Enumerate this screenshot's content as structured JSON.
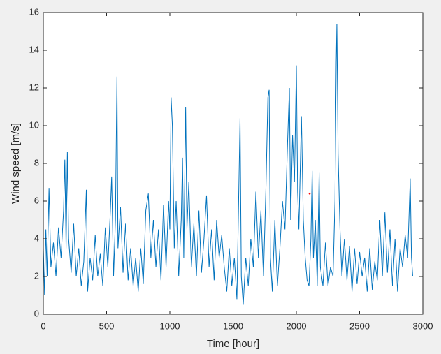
{
  "chart_data": {
    "type": "line",
    "xlabel": "Time [hour]",
    "ylabel": "Wind speed [m/s]",
    "xlim": [
      0,
      3000
    ],
    "xticks": [
      0,
      500,
      1000,
      1500,
      2000,
      2500,
      3000
    ],
    "ylim": [
      0,
      16
    ],
    "yticks": [
      0,
      2,
      4,
      6,
      8,
      10,
      12,
      14,
      16
    ],
    "series": [
      {
        "color": "#0072bd",
        "x": [
          0,
          10,
          20,
          30,
          45,
          60,
          80,
          100,
          120,
          140,
          160,
          170,
          180,
          190,
          200,
          220,
          240,
          260,
          280,
          300,
          320,
          340,
          350,
          370,
          390,
          410,
          430,
          450,
          470,
          490,
          510,
          530,
          540,
          555,
          570,
          582,
          590,
          610,
          630,
          650,
          670,
          690,
          710,
          730,
          750,
          770,
          790,
          810,
          830,
          850,
          870,
          890,
          910,
          930,
          950,
          970,
          990,
          1000,
          1010,
          1020,
          1035,
          1050,
          1070,
          1090,
          1100,
          1110,
          1125,
          1135,
          1150,
          1170,
          1190,
          1210,
          1230,
          1250,
          1270,
          1290,
          1310,
          1330,
          1350,
          1370,
          1390,
          1410,
          1430,
          1450,
          1470,
          1490,
          1510,
          1530,
          1545,
          1555,
          1565,
          1580,
          1600,
          1620,
          1640,
          1660,
          1680,
          1700,
          1720,
          1740,
          1760,
          1775,
          1785,
          1795,
          1810,
          1830,
          1850,
          1870,
          1890,
          1910,
          1930,
          1945,
          1955,
          1970,
          1985,
          2000,
          2010,
          2020,
          2040,
          2055,
          2070,
          2085,
          2100,
          2115,
          2125,
          2135,
          2150,
          2165,
          2180,
          2190,
          2210,
          2230,
          2250,
          2270,
          2290,
          2305,
          2315,
          2320,
          2330,
          2345,
          2360,
          2380,
          2400,
          2420,
          2440,
          2460,
          2480,
          2500,
          2520,
          2540,
          2560,
          2580,
          2600,
          2620,
          2640,
          2660,
          2680,
          2700,
          2720,
          2740,
          2760,
          2780,
          2800,
          2820,
          2840,
          2860,
          2880,
          2900,
          2910,
          2920
        ],
        "values": [
          3.5,
          1.0,
          4.5,
          2.0,
          6.7,
          2.5,
          3.8,
          2.0,
          4.6,
          3.0,
          5.5,
          8.2,
          3.5,
          8.6,
          4.0,
          2.2,
          4.8,
          2.0,
          3.5,
          1.5,
          2.8,
          6.6,
          1.2,
          3.0,
          1.8,
          4.2,
          2.0,
          3.2,
          1.5,
          4.6,
          2.5,
          5.5,
          7.3,
          2.0,
          5.0,
          12.6,
          3.5,
          5.7,
          2.2,
          4.8,
          1.8,
          3.5,
          1.5,
          3.0,
          1.2,
          3.5,
          1.6,
          5.5,
          6.4,
          3.0,
          5.0,
          2.5,
          4.5,
          1.8,
          5.8,
          2.5,
          6.0,
          4.5,
          11.5,
          10.0,
          3.5,
          6.0,
          2.0,
          5.0,
          8.3,
          3.0,
          11.0,
          4.5,
          7.0,
          2.5,
          4.8,
          2.0,
          5.5,
          2.2,
          4.0,
          6.3,
          2.5,
          4.5,
          1.8,
          5.0,
          3.0,
          4.2,
          2.5,
          1.2,
          3.5,
          1.5,
          3.0,
          0.8,
          6.5,
          10.4,
          2.0,
          0.5,
          3.0,
          1.5,
          4.0,
          2.5,
          6.5,
          3.0,
          5.5,
          2.0,
          6.8,
          11.5,
          11.9,
          3.0,
          1.2,
          5.0,
          1.5,
          3.5,
          6.0,
          4.5,
          9.0,
          12.0,
          5.0,
          9.5,
          7.0,
          13.2,
          6.5,
          4.5,
          10.5,
          5.0,
          3.0,
          1.8,
          1.5,
          4.0,
          7.6,
          3.0,
          5.0,
          1.5,
          7.5,
          2.5,
          1.5,
          3.8,
          1.5,
          2.5,
          2.0,
          6.0,
          13.3,
          15.4,
          8.5,
          4.5,
          2.0,
          4.0,
          1.8,
          3.6,
          1.2,
          3.5,
          1.6,
          3.3,
          2.0,
          3.0,
          1.2,
          3.5,
          1.3,
          2.8,
          1.8,
          5.0,
          2.0,
          5.4,
          2.2,
          4.5,
          1.5,
          4.0,
          1.2,
          3.5,
          2.5,
          4.2,
          3.0,
          7.2,
          3.0,
          2.0
        ]
      },
      {
        "color": "#ff0000",
        "marker": true,
        "x": [
          2105
        ],
        "values": [
          6.4
        ]
      }
    ]
  }
}
